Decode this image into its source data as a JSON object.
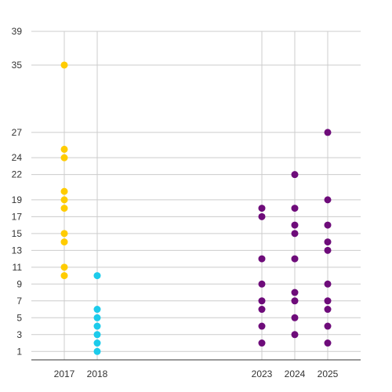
{
  "chart_data": {
    "type": "scatter",
    "title": "",
    "xlabel": "",
    "ylabel": "",
    "x_ticks": [
      2017,
      2018,
      2023,
      2024,
      2025
    ],
    "y_ticks": [
      1,
      3,
      5,
      7,
      9,
      11,
      13,
      15,
      17,
      19,
      22,
      24,
      27,
      35,
      39
    ],
    "xlim": [
      2016.0,
      2026.0
    ],
    "ylim": [
      0,
      39
    ],
    "grid": true,
    "legend": "none",
    "series": [
      {
        "color": "#FFCC00",
        "points": [
          [
            2017,
            10
          ],
          [
            2017,
            11
          ],
          [
            2017,
            14
          ],
          [
            2017,
            15
          ],
          [
            2017,
            18
          ],
          [
            2017,
            19
          ],
          [
            2017,
            20
          ],
          [
            2017,
            24
          ],
          [
            2017,
            25
          ],
          [
            2017,
            35
          ]
        ]
      },
      {
        "color": "#1CCBEB",
        "points": [
          [
            2018,
            1
          ],
          [
            2018,
            2
          ],
          [
            2018,
            3
          ],
          [
            2018,
            4
          ],
          [
            2018,
            5
          ],
          [
            2018,
            6
          ],
          [
            2018,
            10
          ]
        ]
      },
      {
        "color": "#6E0C7A",
        "points": [
          [
            2023,
            2
          ],
          [
            2023,
            4
          ],
          [
            2023,
            6
          ],
          [
            2023,
            7
          ],
          [
            2023,
            9
          ],
          [
            2023,
            12
          ],
          [
            2023,
            17
          ],
          [
            2023,
            18
          ],
          [
            2024,
            3
          ],
          [
            2024,
            5
          ],
          [
            2024,
            7
          ],
          [
            2024,
            8
          ],
          [
            2024,
            12
          ],
          [
            2024,
            15
          ],
          [
            2024,
            16
          ],
          [
            2024,
            18
          ],
          [
            2024,
            22
          ],
          [
            2025,
            2
          ],
          [
            2025,
            4
          ],
          [
            2025,
            6
          ],
          [
            2025,
            7
          ],
          [
            2025,
            9
          ],
          [
            2025,
            13
          ],
          [
            2025,
            14
          ],
          [
            2025,
            16
          ],
          [
            2025,
            19
          ],
          [
            2025,
            27
          ]
        ]
      }
    ]
  }
}
